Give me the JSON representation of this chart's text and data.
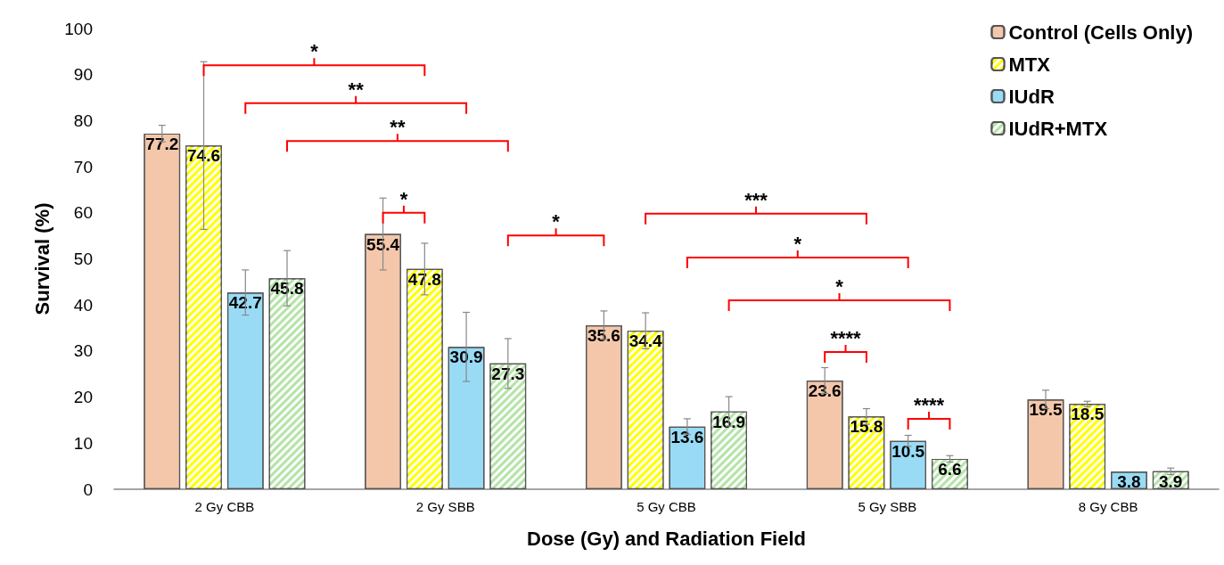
{
  "chart_data": {
    "type": "bar",
    "xlabel": "Dose (Gy) and Radiation Field",
    "ylabel": "Survival (%)",
    "categories": [
      "2 Gy CBB",
      "2 Gy SBB",
      "5 Gy CBB",
      "5 Gy SBB",
      "8 Gy CBB"
    ],
    "series": [
      {
        "name": "Control (Cells Only)",
        "color": "#f4c7ab",
        "values": [
          77.2,
          55.4,
          35.6,
          23.6,
          19.5
        ],
        "errors": [
          1.8,
          7.8,
          3.1,
          2.8,
          2.0
        ]
      },
      {
        "name": "MTX",
        "color": "#ffff00",
        "values": [
          74.6,
          47.8,
          34.4,
          15.8,
          18.5
        ],
        "errors": [
          18.2,
          5.6,
          3.9,
          1.7,
          0.6
        ]
      },
      {
        "name": "IUdR",
        "color": "#99dbf5",
        "values": [
          42.7,
          30.9,
          13.6,
          10.5,
          3.8
        ],
        "errors": [
          4.9,
          7.5,
          1.7,
          1.2,
          null
        ]
      },
      {
        "name": "IUdR+MTX",
        "color": "#b5e3a8",
        "values": [
          45.8,
          27.3,
          16.9,
          6.6,
          3.9
        ],
        "errors": [
          6.0,
          5.4,
          3.2,
          0.7,
          0.7
        ]
      }
    ],
    "ylim": [
      0,
      100
    ],
    "yticks": [
      0,
      10,
      20,
      30,
      40,
      50,
      60,
      70,
      80,
      90,
      100
    ],
    "grid": false,
    "legend": "top right",
    "data_labels": true,
    "annotations": [
      "*",
      "**",
      "**",
      "*",
      "*",
      "***",
      "*",
      "*",
      "****",
      "****"
    ]
  }
}
